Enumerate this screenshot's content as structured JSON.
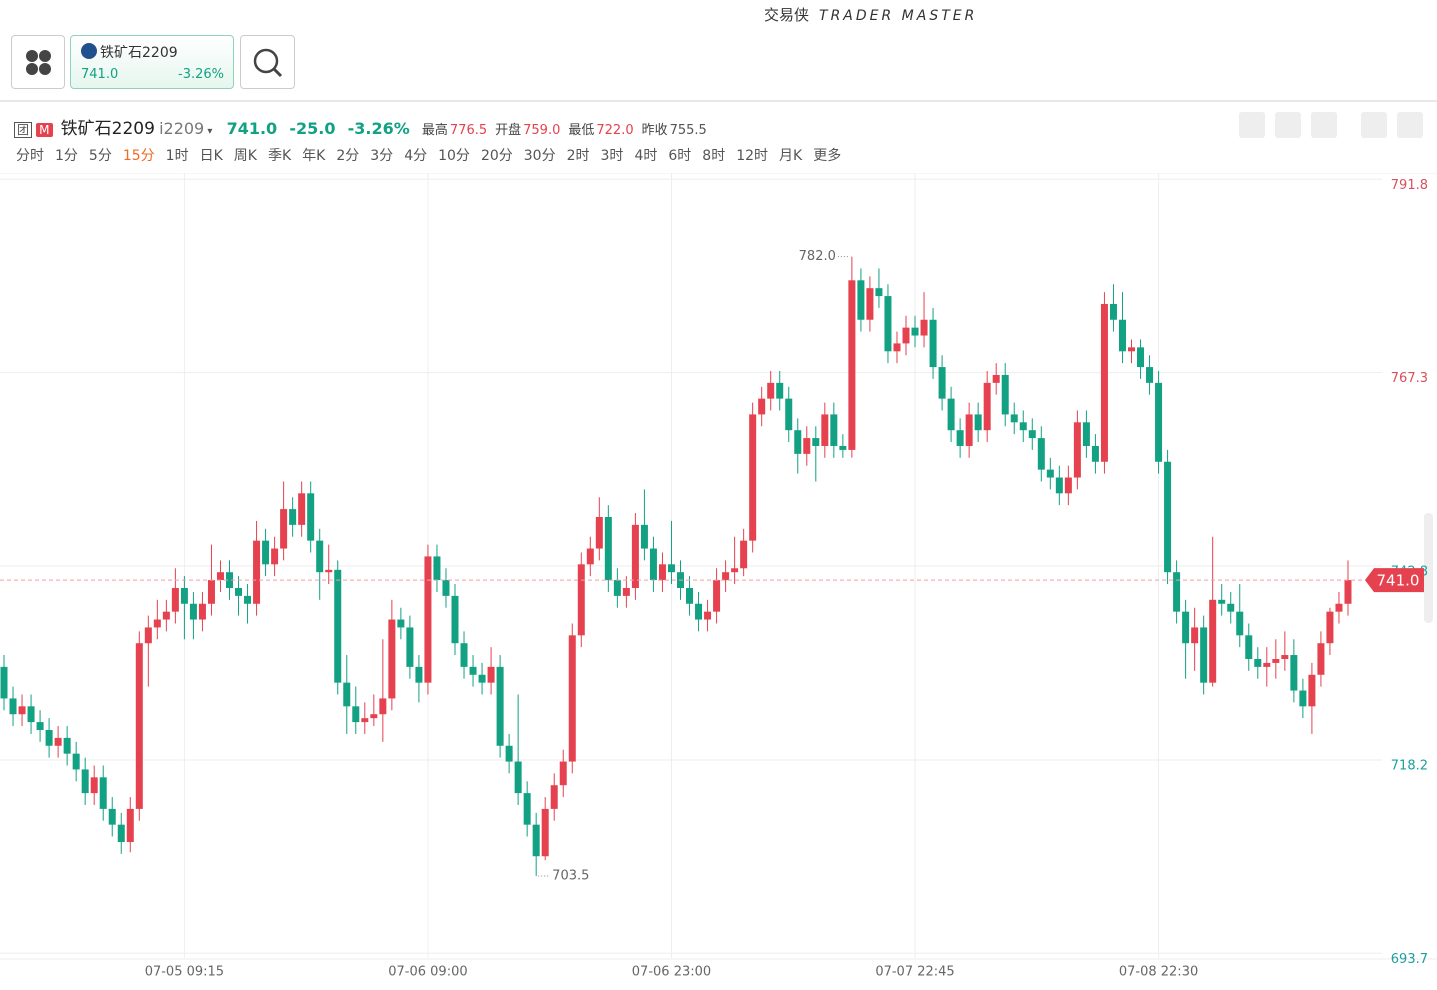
{
  "app": {
    "brand": "交易侠",
    "brand_en": "TRADER MASTER"
  },
  "card": {
    "name": "铁矿石2209",
    "price": "741.0",
    "change_pct": "-3.26%"
  },
  "header": {
    "icon1": "团",
    "icon2": "M",
    "name": "铁矿石2209",
    "code": "i2209",
    "price": "741.0",
    "change": "-25.0",
    "change_pct": "-3.26%",
    "stats": [
      {
        "label": "最高",
        "value": "776.5"
      },
      {
        "label": "开盘",
        "value": "759.0"
      },
      {
        "label": "最低",
        "value": "722.0"
      },
      {
        "label": "昨收",
        "value": "755.5"
      }
    ]
  },
  "periods": [
    "分时",
    "1分",
    "5分",
    "15分",
    "1时",
    "日K",
    "周K",
    "季K",
    "年K",
    "2分",
    "3分",
    "4分",
    "10分",
    "20分",
    "30分",
    "2时",
    "3时",
    "4时",
    "6时",
    "8时",
    "12时",
    "月K",
    "更多"
  ],
  "active_period": 3,
  "chart_data": {
    "type": "candlestick",
    "up_color": "#e5414f",
    "down_color": "#12a182",
    "ylim": [
      693.1,
      792.6
    ],
    "yticks": [
      {
        "value": 791.8,
        "label": "791.8"
      },
      {
        "value": 767.3,
        "label": "767.3"
      },
      {
        "value": 742.8,
        "label": "742.8"
      },
      {
        "value": 718.2,
        "label": "718.2"
      },
      {
        "value": 693.7,
        "label": "693.7"
      }
    ],
    "grid": true,
    "last_price": {
      "value": 741,
      "label": "741.0"
    },
    "annotations": [
      {
        "value": 782,
        "label": "782.0"
      },
      {
        "value": 703.5,
        "label": "703.5"
      }
    ],
    "x": [
      null,
      null,
      null,
      null,
      null,
      null,
      null,
      null,
      null,
      null,
      null,
      null,
      null,
      null,
      null,
      null,
      null,
      null,
      null,
      null,
      "07-05 09:15",
      null,
      null,
      null,
      null,
      null,
      null,
      null,
      null,
      null,
      null,
      null,
      null,
      null,
      null,
      null,
      null,
      null,
      null,
      null,
      null,
      null,
      null,
      null,
      null,
      null,
      null,
      "07-06 09:00",
      null,
      null,
      null,
      null,
      null,
      null,
      null,
      null,
      null,
      null,
      null,
      null,
      null,
      null,
      null,
      null,
      null,
      null,
      null,
      null,
      null,
      null,
      null,
      null,
      null,
      null,
      "07-06 23:00",
      null,
      null,
      null,
      null,
      null,
      null,
      null,
      null,
      null,
      null,
      null,
      null,
      null,
      null,
      null,
      null,
      null,
      null,
      null,
      null,
      null,
      null,
      null,
      null,
      null,
      null,
      "07-07 22:45",
      null,
      null,
      null,
      null,
      null,
      null,
      null,
      null,
      null,
      null,
      null,
      null,
      null,
      null,
      null,
      null,
      null,
      null,
      null,
      null,
      null,
      null,
      null,
      null,
      null,
      null,
      "07-08 22:30",
      null,
      null,
      null,
      null,
      null,
      null,
      null,
      null,
      null,
      null,
      null,
      null,
      null,
      null,
      null,
      null,
      null,
      null,
      null,
      null,
      null
    ],
    "ohlc": [
      [
        730,
        731.5,
        724.5,
        726
      ],
      [
        726,
        727.5,
        722.5,
        724
      ],
      [
        724,
        726.5,
        722.5,
        725
      ],
      [
        725,
        726.5,
        721.5,
        723
      ],
      [
        723,
        724.5,
        720.5,
        722
      ],
      [
        722,
        723.5,
        718.5,
        720
      ],
      [
        720,
        722.5,
        718.5,
        721
      ],
      [
        721,
        722.5,
        717.5,
        719
      ],
      [
        719,
        720.5,
        715.5,
        717
      ],
      [
        717,
        718.5,
        712.5,
        714
      ],
      [
        714,
        717.5,
        712.5,
        716
      ],
      [
        716,
        717.5,
        710.5,
        712
      ],
      [
        712,
        713.5,
        708.5,
        710
      ],
      [
        710,
        711.5,
        706.3,
        707.8
      ],
      [
        707.8,
        713.5,
        706.5,
        712
      ],
      [
        712,
        734.5,
        710.5,
        733
      ],
      [
        733,
        736.5,
        727.5,
        735
      ],
      [
        735,
        738.5,
        733.5,
        736
      ],
      [
        736,
        738.5,
        734.5,
        737
      ],
      [
        737,
        742.5,
        735.5,
        740
      ],
      [
        740,
        741.5,
        733.5,
        738
      ],
      [
        738,
        739.5,
        733.5,
        736
      ],
      [
        736,
        739.5,
        734.5,
        738
      ],
      [
        738,
        745.5,
        736.5,
        741
      ],
      [
        741,
        743.5,
        739.5,
        742
      ],
      [
        742,
        743.5,
        738.5,
        740
      ],
      [
        740,
        741.5,
        736.5,
        739
      ],
      [
        739,
        740.5,
        735.5,
        738
      ],
      [
        738,
        748.5,
        736.5,
        746
      ],
      [
        746,
        747.5,
        741.5,
        743
      ],
      [
        743,
        746.5,
        741.5,
        745
      ],
      [
        745,
        753.5,
        743.5,
        750
      ],
      [
        750,
        751.5,
        746.5,
        748
      ],
      [
        748,
        753.5,
        746.5,
        752
      ],
      [
        752,
        753.5,
        744.5,
        746
      ],
      [
        746,
        747.5,
        738.5,
        742
      ],
      [
        742,
        745.5,
        740.5,
        742.3
      ],
      [
        742.3,
        743.5,
        726.5,
        728
      ],
      [
        728,
        731.5,
        721.5,
        725
      ],
      [
        725,
        727.5,
        721.5,
        723
      ],
      [
        723,
        725.5,
        721.5,
        723.5
      ],
      [
        723.5,
        726.5,
        722.5,
        724
      ],
      [
        724,
        733.5,
        720.5,
        726
      ],
      [
        726,
        738.5,
        724.5,
        736
      ],
      [
        736,
        737.5,
        733.5,
        735
      ],
      [
        735,
        736.5,
        728.5,
        730
      ],
      [
        730,
        731.5,
        725.5,
        728
      ],
      [
        728,
        745.5,
        726.5,
        744
      ],
      [
        744,
        745.5,
        739.5,
        741
      ],
      [
        741,
        742.5,
        737.5,
        739
      ],
      [
        739,
        740.5,
        731.5,
        733
      ],
      [
        733,
        734.5,
        728.5,
        730
      ],
      [
        730,
        731.5,
        727.5,
        729
      ],
      [
        729,
        730.5,
        726.5,
        728
      ],
      [
        728,
        732.5,
        726.5,
        730
      ],
      [
        730,
        731.5,
        718.5,
        720
      ],
      [
        720,
        721.5,
        716.5,
        718
      ],
      [
        718,
        726.5,
        712.5,
        714
      ],
      [
        714,
        715.5,
        708.5,
        710
      ],
      [
        710,
        711.5,
        703.5,
        706
      ],
      [
        706,
        713.5,
        705.5,
        712
      ],
      [
        712,
        716.5,
        710.5,
        715
      ],
      [
        715,
        719.5,
        713.5,
        718
      ],
      [
        718,
        735.5,
        716.5,
        734
      ],
      [
        734,
        744.5,
        732.5,
        743
      ],
      [
        743,
        746.5,
        741.5,
        745
      ],
      [
        745,
        751.5,
        743.5,
        749
      ],
      [
        749,
        750.5,
        739.5,
        741
      ],
      [
        741,
        742.5,
        737.5,
        739
      ],
      [
        739,
        741.5,
        737.5,
        740
      ],
      [
        740,
        749.5,
        738.5,
        748
      ],
      [
        748,
        752.5,
        743.5,
        745
      ],
      [
        745,
        746.5,
        739.5,
        741
      ],
      [
        741,
        744.5,
        739.5,
        743
      ],
      [
        743,
        748.5,
        740.5,
        742
      ],
      [
        742,
        743.5,
        738.5,
        740
      ],
      [
        740,
        741.5,
        736.5,
        738
      ],
      [
        738,
        739.5,
        734.5,
        736
      ],
      [
        736,
        738.5,
        734.5,
        737
      ],
      [
        737,
        742.5,
        735.5,
        741
      ],
      [
        741,
        743.5,
        739.5,
        742
      ],
      [
        742,
        746.5,
        740.5,
        742.5
      ],
      [
        742.5,
        747.5,
        741.5,
        746
      ],
      [
        746,
        763.5,
        744.5,
        762
      ],
      [
        762,
        765.5,
        760.5,
        764
      ],
      [
        764,
        767.5,
        762.5,
        766
      ],
      [
        766,
        767.5,
        762.5,
        764
      ],
      [
        764,
        765.5,
        758.5,
        760
      ],
      [
        760,
        761.5,
        754.5,
        757
      ],
      [
        757,
        760.5,
        755.5,
        759
      ],
      [
        759,
        760.5,
        753.5,
        758
      ],
      [
        758,
        763.5,
        756.5,
        762
      ],
      [
        762,
        763.5,
        756.5,
        758
      ],
      [
        758,
        759.5,
        756.5,
        757.5
      ],
      [
        757.5,
        782,
        756.5,
        779
      ],
      [
        779,
        780.5,
        772.5,
        774
      ],
      [
        774,
        779.5,
        772.5,
        778
      ],
      [
        778,
        780.5,
        775.5,
        777
      ],
      [
        777,
        778.5,
        768.5,
        770
      ],
      [
        770,
        772.5,
        768.5,
        771
      ],
      [
        771,
        774.5,
        769.5,
        773
      ],
      [
        773,
        774.5,
        770.5,
        772
      ],
      [
        772,
        777.5,
        770.5,
        774
      ],
      [
        774,
        775.5,
        766.5,
        768
      ],
      [
        768,
        769.5,
        762.5,
        764
      ],
      [
        764,
        765.5,
        758.5,
        760
      ],
      [
        760,
        761.5,
        756.5,
        758
      ],
      [
        758,
        763.5,
        756.5,
        762
      ],
      [
        762,
        763.5,
        758.5,
        760
      ],
      [
        760,
        767.5,
        758.5,
        766
      ],
      [
        766,
        768.5,
        764.5,
        767
      ],
      [
        767,
        768.5,
        760.5,
        762
      ],
      [
        762,
        763.5,
        759.5,
        761
      ],
      [
        761,
        762.5,
        758.5,
        760
      ],
      [
        760,
        761.5,
        757.5,
        759
      ],
      [
        759,
        760.5,
        753.5,
        755
      ],
      [
        755,
        756.5,
        752.5,
        754
      ],
      [
        754,
        755.5,
        750.5,
        752
      ],
      [
        752,
        755.5,
        750.5,
        754
      ],
      [
        754,
        762.5,
        752.5,
        761
      ],
      [
        761,
        762.5,
        756.5,
        758
      ],
      [
        758,
        759.5,
        754.5,
        756
      ],
      [
        756,
        777.5,
        754.5,
        776
      ],
      [
        776,
        778.5,
        772.5,
        774
      ],
      [
        774,
        777.5,
        768.5,
        770
      ],
      [
        770,
        771.5,
        768.5,
        770.5
      ],
      [
        770.5,
        771.5,
        766.5,
        768
      ],
      [
        768,
        769.5,
        764.5,
        766
      ],
      [
        766,
        767.5,
        754.5,
        756
      ],
      [
        756,
        757.5,
        740.5,
        742
      ],
      [
        742,
        743.5,
        735.5,
        737
      ],
      [
        737,
        738.5,
        728.5,
        733
      ],
      [
        733,
        737.5,
        729.5,
        735
      ],
      [
        735,
        736.5,
        726.5,
        728
      ],
      [
        728,
        746.5,
        727.5,
        738.5
      ],
      [
        738.5,
        740.5,
        736.5,
        738
      ],
      [
        738,
        739.5,
        735.5,
        737
      ],
      [
        737,
        740.5,
        732.5,
        734
      ],
      [
        734,
        735.5,
        729.5,
        731
      ],
      [
        731,
        732.5,
        728.5,
        730
      ],
      [
        730,
        732.5,
        727.5,
        730.5
      ],
      [
        730.5,
        733.5,
        728.5,
        731
      ],
      [
        731,
        734.5,
        729.5,
        731.5
      ],
      [
        731.5,
        733.5,
        725.5,
        727
      ],
      [
        727,
        728.5,
        723.5,
        725
      ],
      [
        725,
        730.5,
        721.5,
        729
      ],
      [
        729,
        734.5,
        727.5,
        733
      ],
      [
        733,
        737.5,
        731.5,
        737
      ],
      [
        737,
        739.5,
        735.5,
        738
      ],
      [
        738,
        743.5,
        736.5,
        741
      ]
    ]
  }
}
